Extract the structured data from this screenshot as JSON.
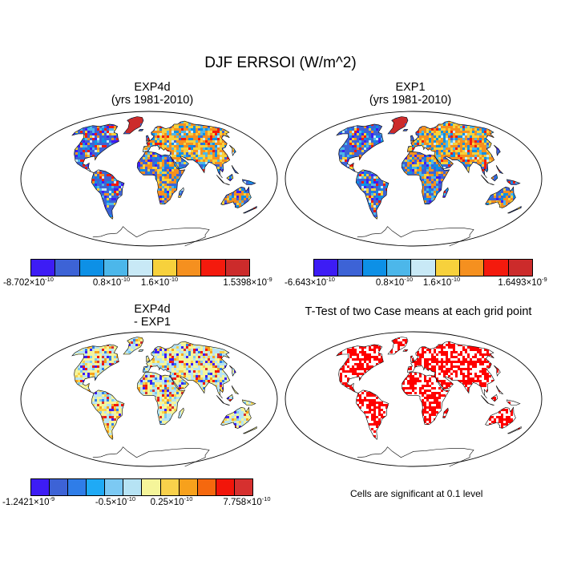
{
  "title": "DJF ERRSOI (W/m^2)",
  "panels": [
    {
      "title_line1": "EXP4d",
      "title_line2": "(yrs 1981-2010)",
      "scheme": "std",
      "colors": [
        "#3d1cf5",
        "#3d63d6",
        "#0d90e6",
        "#4cb7ea",
        "#c8e9f6",
        "#f7d13c",
        "#f5901f",
        "#f41a0d",
        "#cc2b2b"
      ],
      "labels": {
        "min": "-8.702",
        "a": "0.8",
        "b": "1.6",
        "max": "1.5398"
      },
      "exp": {
        "min": "-10",
        "a": "-10",
        "b": "-10",
        "max": "-9"
      }
    },
    {
      "title_line1": "EXP1",
      "title_line2": "(yrs 1981-2010)",
      "scheme": "std",
      "colors": [
        "#3d1cf5",
        "#3d63d6",
        "#0d90e6",
        "#4cb7ea",
        "#c8e9f6",
        "#f7d13c",
        "#f5901f",
        "#f41a0d",
        "#cc2b2b"
      ],
      "labels": {
        "min": "-6.643",
        "a": "0.8",
        "b": "1.6",
        "max": "1.6493"
      },
      "exp": {
        "min": "-10",
        "a": "-10",
        "b": "-10",
        "max": "-9"
      }
    },
    {
      "title_line1": "EXP4d",
      "title_line2": "- EXP1",
      "scheme": "diff",
      "colors": [
        "#3d1cf5",
        "#3d63d6",
        "#2f7de8",
        "#1faaf5",
        "#7cc9f3",
        "#b6e3f4",
        "#f5f59a",
        "#f9d14b",
        "#f7a11c",
        "#f5680e",
        "#f2150a",
        "#d6302f"
      ],
      "labels": {
        "min": "-1.2421",
        "a": "-0.5",
        "b": "0.25",
        "max": "7.758"
      },
      "exp": {
        "min": "-9",
        "a": "-10",
        "b": "-10",
        "max": "-10"
      }
    },
    {
      "title_line1": "T-Test of two Case means at each grid point",
      "scheme": "ttest",
      "note": "Cells are significant at 0.1 level"
    }
  ],
  "times_sign": "×",
  "base10": "10"
}
